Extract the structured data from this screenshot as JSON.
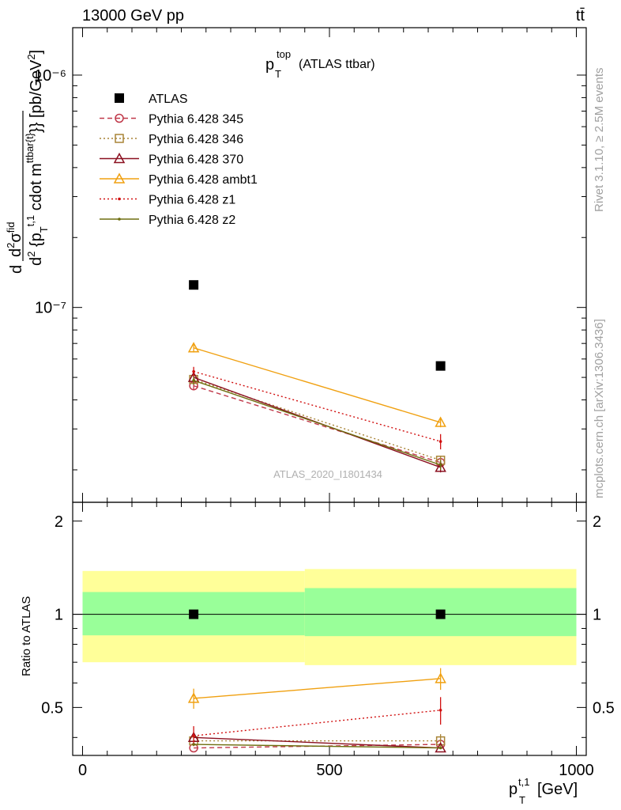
{
  "header": {
    "beam": "13000 GeV pp",
    "process": "tt̄",
    "plot_title_main": "p",
    "plot_title_sup": "top",
    "plot_title_sub": "T",
    "plot_title_tail": "(ATLAS ttbar)",
    "analysis_id": "ATLAS_2020_I1801434",
    "rivet_label": "Rivet 3.1.10, ≥ 2.5M events",
    "mcplots_label": "mcplots.cern.ch [arXiv:1306.3436]"
  },
  "axes": {
    "ylabel_main": "d²σ^{fid} / d² {p_T^{t,1} cdot m^{ttbar{t}}} [pb/GeV²]",
    "ylabel_ratio": "Ratio to ATLAS",
    "xlabel": "p_T^{t,1} [GeV]",
    "x_ticks": [
      "0",
      "500",
      "1000"
    ],
    "y_ticks_main": [
      "10⁻⁶",
      "10⁻⁷"
    ],
    "y_ticks_ratio": [
      "2",
      "1",
      "0.5"
    ]
  },
  "chart_data": {
    "type": "scatter",
    "x_range": [
      -20,
      1020
    ],
    "y_range_main": [
      1.45e-08,
      1.6e-06
    ],
    "y_scale_main": "log",
    "y_range_ratio": [
      0.35,
      2.3
    ],
    "y_scale_ratio": "log",
    "bin_edges": [
      0,
      450,
      1000
    ],
    "x": [
      225,
      725
    ],
    "legend_position": "top-left",
    "series": [
      {
        "name": "ATLAS",
        "color": "#000000",
        "marker": "square",
        "line": "none",
        "values": [
          1.25e-07,
          5.6e-08
        ],
        "err": [
          0,
          0
        ],
        "ratio": [
          1.0,
          1.0
        ],
        "ratio_err": [
          0,
          0
        ]
      },
      {
        "name": "Pythia 6.428 345",
        "color": "#c0394a",
        "marker": "circle-open",
        "line": "dashed",
        "values": [
          4.6e-08,
          2.15e-08
        ],
        "err": [
          2e-09,
          1e-09
        ],
        "ratio": [
          0.37,
          0.38
        ],
        "ratio_err": [
          0,
          0
        ]
      },
      {
        "name": "Pythia 6.428 346",
        "color": "#a88436",
        "marker": "square-open",
        "line": "dotted",
        "values": [
          4.9e-08,
          2.2e-08
        ],
        "err": [
          2e-09,
          1e-09
        ],
        "ratio": [
          0.39,
          0.39
        ],
        "ratio_err": [
          0,
          0.02
        ]
      },
      {
        "name": "Pythia 6.428 370",
        "color": "#8b1020",
        "marker": "triangle-open",
        "line": "solid",
        "values": [
          5e-08,
          2.05e-08
        ],
        "err": [
          2e-09,
          1e-09
        ],
        "ratio": [
          0.4,
          0.37
        ],
        "ratio_err": [
          0,
          0
        ]
      },
      {
        "name": "Pythia 6.428 ambt1",
        "color": "#f0a010",
        "marker": "triangle-open",
        "line": "solid",
        "values": [
          6.7e-08,
          3.2e-08
        ],
        "err": [
          3e-09,
          1.5e-09
        ],
        "ratio": [
          0.535,
          0.62
        ],
        "ratio_err": [
          0.04,
          0.05
        ]
      },
      {
        "name": "Pythia 6.428 z1",
        "color": "#d11010",
        "marker": "dot",
        "line": "dotted",
        "values": [
          5.3e-08,
          2.65e-08
        ],
        "err": [
          2.5e-09,
          2e-09
        ],
        "ratio": [
          0.405,
          0.49
        ],
        "ratio_err": [
          0.03,
          0.05
        ]
      },
      {
        "name": "Pythia 6.428 z2",
        "color": "#6e6e10",
        "marker": "dot",
        "line": "solid",
        "values": [
          4.85e-08,
          2.1e-08
        ],
        "err": [
          2e-09,
          1e-09
        ],
        "ratio": [
          0.38,
          0.37
        ],
        "ratio_err": [
          0,
          0
        ]
      }
    ],
    "bands": [
      {
        "x": [
          0,
          450
        ],
        "inner": [
          0.855,
          1.18
        ],
        "outer": [
          0.7,
          1.38
        ]
      },
      {
        "x": [
          450,
          1000
        ],
        "inner": [
          0.85,
          1.215
        ],
        "outer": [
          0.685,
          1.4
        ]
      }
    ],
    "colors": {
      "band_inner": "#99ff99",
      "band_outer": "#ffff99"
    }
  }
}
